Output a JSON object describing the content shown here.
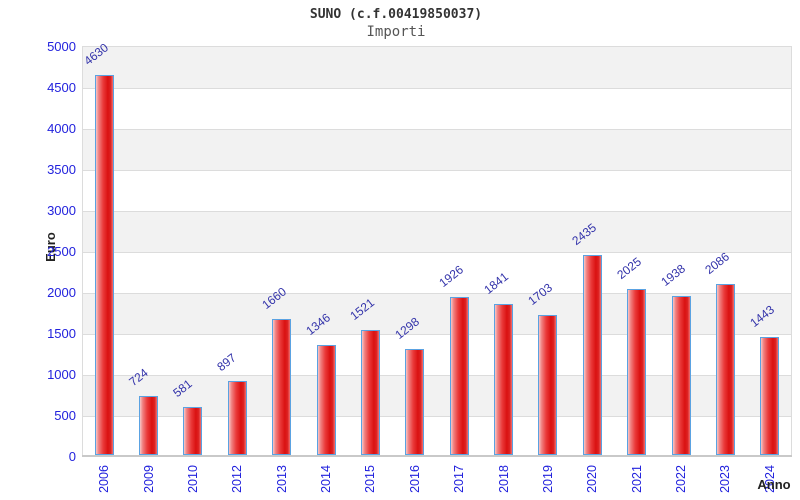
{
  "header": {
    "title": "SUNO (c.f.00419850037)",
    "subtitle": "Importi"
  },
  "axes": {
    "y_label": "Euro",
    "x_label": "Anno"
  },
  "colors": {
    "tick_label": "#2222dd",
    "value_label": "#3333aa",
    "bar_fill": "#da1111",
    "bar_border": "#5aa2e2",
    "band_gray": "#f2f2f2",
    "band_white": "#ffffff",
    "grid_line": "#dcdcdc",
    "title_text": "#333333",
    "subtitle_text": "#555555"
  },
  "chart_data": {
    "type": "bar",
    "title": "SUNO (c.f.00419850037)",
    "subtitle": "Importi",
    "xlabel": "Anno",
    "ylabel": "Euro",
    "categories": [
      "2006",
      "2009",
      "2010",
      "2012",
      "2013",
      "2014",
      "2015",
      "2016",
      "2017",
      "2018",
      "2019",
      "2020",
      "2021",
      "2022",
      "2023",
      "2024"
    ],
    "values": [
      4630,
      724,
      581,
      897,
      1660,
      1346,
      1521,
      1298,
      1926,
      1841,
      1703,
      2435,
      2025,
      1938,
      2086,
      1443
    ],
    "ylim": [
      0,
      5000
    ],
    "ytick_step": 500,
    "yticks": [
      0,
      500,
      1000,
      1500,
      2000,
      2500,
      3000,
      3500,
      4000,
      4500,
      5000
    ],
    "grid": "horizontal-bands-alternating",
    "legend": "none"
  }
}
